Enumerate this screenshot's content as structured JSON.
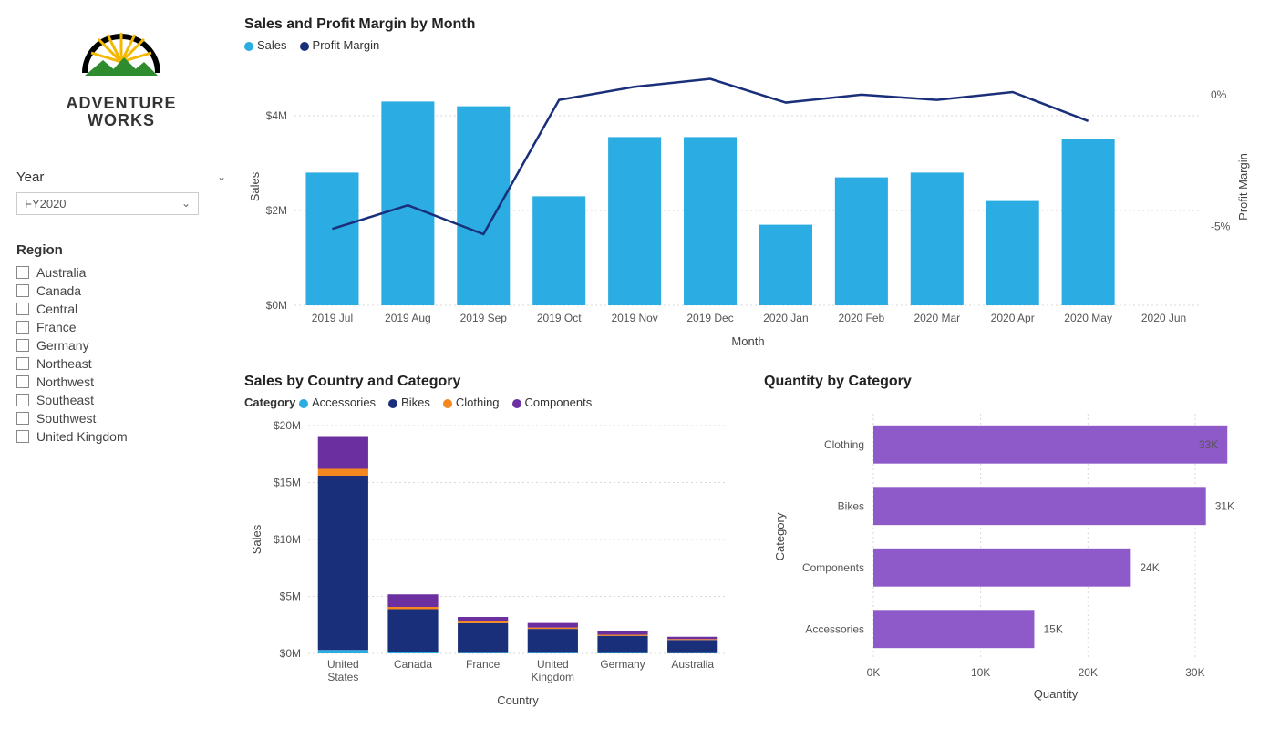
{
  "logo": {
    "text1": "ADVENTURE",
    "text2": "WORKS"
  },
  "year_slicer": {
    "label": "Year",
    "selected": "FY2020"
  },
  "region_slicer": {
    "label": "Region",
    "items": [
      "Australia",
      "Canada",
      "Central",
      "France",
      "Germany",
      "Northeast",
      "Northwest",
      "Southeast",
      "Southwest",
      "United Kingdom"
    ]
  },
  "main_chart": {
    "title": "Sales and Profit Margin by Month",
    "legend": [
      {
        "label": "Sales",
        "color": "#2bace2"
      },
      {
        "label": "Profit Margin",
        "color": "#1a2f7a"
      }
    ],
    "y_left": {
      "title": "Sales",
      "ticks": [
        0,
        2,
        4
      ],
      "tick_labels": [
        "$0M",
        "$2M",
        "$4M"
      ],
      "max": 5
    },
    "y_right": {
      "title": "Profit Margin",
      "ticks": [
        0,
        -5
      ],
      "tick_labels": [
        "0%",
        "-5%"
      ],
      "min": -8,
      "max": 1
    },
    "x_title": "Month",
    "categories": [
      "2019 Jul",
      "2019 Aug",
      "2019 Sep",
      "2019 Oct",
      "2019 Nov",
      "2019 Dec",
      "2020 Jan",
      "2020 Feb",
      "2020 Mar",
      "2020 Apr",
      "2020 May",
      "2020 Jun"
    ],
    "sales": [
      2.8,
      4.3,
      4.2,
      2.3,
      3.55,
      3.55,
      1.7,
      2.7,
      2.8,
      2.2,
      3.5,
      0
    ],
    "margin": [
      -5.1,
      -4.2,
      -5.3,
      -0.2,
      0.3,
      0.6,
      -0.3,
      0.0,
      -0.2,
      0.1,
      -1.0,
      null
    ],
    "bar_color": "#2bace2",
    "line_color": "#1a2f7a",
    "bg": "#ffffff",
    "grid_color": "#d9d9d9"
  },
  "country_chart": {
    "title": "Sales by Country and Category",
    "legend_title": "Category",
    "legend": [
      {
        "label": "Accessories",
        "color": "#2bace2"
      },
      {
        "label": "Bikes",
        "color": "#1a2f7a"
      },
      {
        "label": "Clothing",
        "color": "#f5871f"
      },
      {
        "label": "Components",
        "color": "#6b2fa0"
      }
    ],
    "y": {
      "title": "Sales",
      "ticks": [
        0,
        5,
        10,
        15,
        20
      ],
      "tick_labels": [
        "$0M",
        "$5M",
        "$10M",
        "$15M",
        "$20M"
      ],
      "max": 20
    },
    "x_title": "Country",
    "categories": [
      "United States",
      "Canada",
      "France",
      "United Kingdom",
      "Germany",
      "Australia"
    ],
    "series": {
      "Accessories": [
        0.3,
        0.08,
        0.05,
        0.05,
        0.04,
        0.03
      ],
      "Bikes": [
        15.3,
        3.8,
        2.6,
        2.1,
        1.5,
        1.15
      ],
      "Clothing": [
        0.6,
        0.2,
        0.15,
        0.12,
        0.1,
        0.08
      ],
      "Components": [
        2.8,
        1.1,
        0.4,
        0.4,
        0.3,
        0.2
      ]
    },
    "grid_color": "#d9d9d9"
  },
  "quantity_chart": {
    "title": "Quantity by Category",
    "y_title": "Category",
    "x_title": "Quantity",
    "x": {
      "ticks": [
        0,
        10,
        20,
        30
      ],
      "tick_labels": [
        "0K",
        "10K",
        "20K",
        "30K"
      ],
      "max": 34
    },
    "bars": [
      {
        "label": "Clothing",
        "value": 33,
        "text": "33K"
      },
      {
        "label": "Bikes",
        "value": 31,
        "text": "31K"
      },
      {
        "label": "Components",
        "value": 24,
        "text": "24K"
      },
      {
        "label": "Accessories",
        "value": 15,
        "text": "15K"
      }
    ],
    "bar_color": "#8e59c9",
    "grid_color": "#d9d9d9"
  }
}
